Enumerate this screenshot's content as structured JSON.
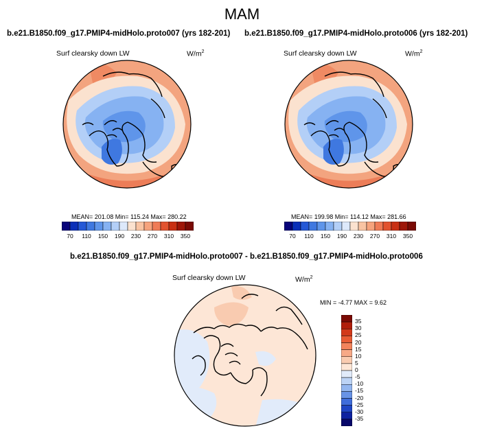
{
  "season": "MAM",
  "panels": [
    {
      "title": "b.e21.B1850.f09_g17.PMIP4-midHolo.proto007 (yrs 182-201)",
      "variable": "Surf clearsky down LW",
      "units_base": "W/m",
      "units_exp": "2",
      "stats": "MEAN= 201.08  Min= 115.24  Max= 280.22"
    },
    {
      "title": "b.e21.B1850.f09_g17.PMIP4-midHolo.proto006 (yrs 182-201)",
      "variable": "Surf clearsky down LW",
      "units_base": "W/m",
      "units_exp": "2",
      "stats": "MEAN= 199.98  Min= 114.12  Max= 281.66"
    }
  ],
  "abs_colorbar": {
    "colors": [
      "#08047a",
      "#0a2fb8",
      "#2458d6",
      "#3f78e0",
      "#5f95ea",
      "#86b2f2",
      "#b3cff7",
      "#dde9fb",
      "#fbe2cf",
      "#f9c4a3",
      "#f6a37d",
      "#ef7b56",
      "#e2532f",
      "#c93013",
      "#9e1608",
      "#7a0a04"
    ],
    "labels": [
      "70",
      "110",
      "150",
      "190",
      "230",
      "270",
      "310",
      "350"
    ]
  },
  "diff": {
    "title": "b.e21.B1850.f09_g17.PMIP4-midHolo.proto007 - b.e21.B1850.f09_g17.PMIP4-midHolo.proto006",
    "variable": "Surf clearsky down LW",
    "units_base": "W/m",
    "units_exp": "2",
    "stats": "MIN =  -4.77 MAX =   9.62"
  },
  "diff_colorbar": {
    "colors": [
      "#7a0a04",
      "#b01e0b",
      "#d2391a",
      "#e85b34",
      "#f3835c",
      "#f7a987",
      "#f9cbb0",
      "#fde6d6",
      "#e1ebfa",
      "#bcd3f5",
      "#93b6ef",
      "#6893e6",
      "#3f6ddb",
      "#1f45c4",
      "#0e22a0",
      "#08086a"
    ],
    "labels": [
      "35",
      "30",
      "25",
      "20",
      "15",
      "10",
      "5",
      "0",
      "-5",
      "-10",
      "-15",
      "-20",
      "-25",
      "-30",
      "-35"
    ]
  }
}
